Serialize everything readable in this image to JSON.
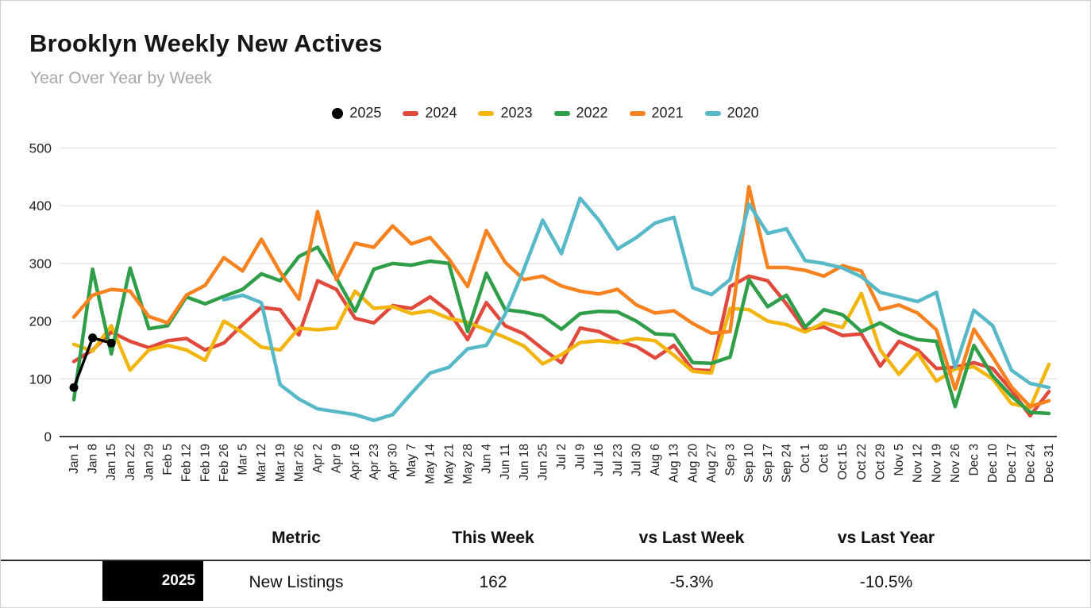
{
  "header": {
    "title": "Brooklyn Weekly New Actives",
    "subtitle": "Year Over Year by Week"
  },
  "legend": [
    {
      "label": "2025",
      "color": "#000000",
      "marker": "circle"
    },
    {
      "label": "2024",
      "color": "#e0493b",
      "marker": "bar"
    },
    {
      "label": "2023",
      "color": "#f2b50d",
      "marker": "bar"
    },
    {
      "label": "2022",
      "color": "#2f9e48",
      "marker": "bar"
    },
    {
      "label": "2021",
      "color": "#f8821f",
      "marker": "bar"
    },
    {
      "label": "2020",
      "color": "#57b9c8",
      "marker": "bar"
    }
  ],
  "chart_data": {
    "type": "line",
    "title": "Brooklyn Weekly New Actives",
    "subtitle": "Year Over Year by Week",
    "xlabel": "",
    "ylabel": "",
    "ylim": [
      0,
      550
    ],
    "yticks": [
      0,
      100,
      200,
      300,
      400,
      500
    ],
    "grid": true,
    "legend_position": "top",
    "categories": [
      "Jan 1",
      "Jan 8",
      "Jan 15",
      "Jan 22",
      "Jan 29",
      "Feb 5",
      "Feb 12",
      "Feb 19",
      "Feb 26",
      "Mar 5",
      "Mar 12",
      "Mar 19",
      "Mar 26",
      "Apr 2",
      "Apr 9",
      "Apr 16",
      "Apr 23",
      "Apr 30",
      "May 7",
      "May 14",
      "May 21",
      "May 28",
      "Jun 4",
      "Jun 11",
      "Jun 18",
      "Jun 25",
      "Jul 2",
      "Jul 9",
      "Jul 16",
      "Jul 23",
      "Jul 30",
      "Aug 6",
      "Aug 13",
      "Aug 20",
      "Aug 27",
      "Sep 3",
      "Sep 10",
      "Sep 17",
      "Sep 24",
      "Oct 1",
      "Oct 8",
      "Oct 15",
      "Oct 22",
      "Oct 29",
      "Nov 5",
      "Nov 12",
      "Nov 19",
      "Nov 26",
      "Dec 3",
      "Dec 10",
      "Dec 17",
      "Dec 24",
      "Dec 31"
    ],
    "series": [
      {
        "name": "2025",
        "color": "#000000",
        "style": "line-with-dots",
        "values": [
          85,
          171,
          162,
          null,
          null,
          null,
          null,
          null,
          null,
          null,
          null,
          null,
          null,
          null,
          null,
          null,
          null,
          null,
          null,
          null,
          null,
          null,
          null,
          null,
          null,
          null,
          null,
          null,
          null,
          null,
          null,
          null,
          null,
          null,
          null,
          null,
          null,
          null,
          null,
          null,
          null,
          null,
          null,
          null,
          null,
          null,
          null,
          null,
          null,
          null,
          null,
          null,
          null
        ]
      },
      {
        "name": "2024",
        "color": "#e0493b",
        "style": "line",
        "values": [
          130,
          150,
          181,
          165,
          154,
          166,
          170,
          150,
          162,
          194,
          224,
          220,
          176,
          270,
          255,
          205,
          197,
          227,
          222,
          242,
          217,
          168,
          232,
          192,
          178,
          152,
          128,
          188,
          182,
          166,
          156,
          136,
          158,
          116,
          114,
          260,
          278,
          270,
          230,
          185,
          190,
          175,
          178,
          122,
          165,
          150,
          118,
          120,
          128,
          118,
          80,
          36,
          78
        ]
      },
      {
        "name": "2023",
        "color": "#f2b50d",
        "style": "line",
        "values": [
          160,
          148,
          192,
          115,
          150,
          158,
          150,
          132,
          200,
          180,
          155,
          150,
          188,
          185,
          188,
          252,
          222,
          225,
          213,
          218,
          205,
          198,
          185,
          172,
          157,
          126,
          142,
          163,
          166,
          163,
          170,
          166,
          141,
          113,
          110,
          222,
          220,
          200,
          194,
          181,
          197,
          189,
          248,
          150,
          108,
          145,
          96,
          117,
          121,
          100,
          57,
          50,
          125
        ]
      },
      {
        "name": "2022",
        "color": "#2f9e48",
        "style": "line",
        "values": [
          64,
          290,
          143,
          292,
          187,
          192,
          242,
          230,
          243,
          255,
          282,
          270,
          312,
          328,
          275,
          217,
          290,
          300,
          297,
          304,
          300,
          182,
          283,
          220,
          216,
          209,
          186,
          213,
          217,
          216,
          200,
          178,
          176,
          128,
          127,
          138,
          272,
          225,
          245,
          190,
          220,
          211,
          182,
          197,
          179,
          168,
          165,
          52,
          158,
          105,
          70,
          42,
          40
        ]
      },
      {
        "name": "2021",
        "color": "#f8821f",
        "style": "line",
        "values": [
          207,
          245,
          255,
          252,
          208,
          197,
          245,
          262,
          310,
          287,
          342,
          285,
          238,
          390,
          272,
          335,
          328,
          365,
          334,
          345,
          308,
          260,
          357,
          302,
          272,
          278,
          261,
          252,
          247,
          255,
          228,
          214,
          218,
          196,
          179,
          182,
          433,
          293,
          293,
          288,
          278,
          296,
          287,
          220,
          228,
          214,
          185,
          82,
          186,
          138,
          86,
          52,
          62
        ]
      },
      {
        "name": "2020",
        "color": "#57b9c8",
        "style": "line",
        "values": [
          null,
          null,
          null,
          null,
          null,
          null,
          null,
          null,
          237,
          245,
          232,
          90,
          65,
          48,
          43,
          38,
          28,
          38,
          75,
          110,
          120,
          152,
          158,
          212,
          290,
          375,
          317,
          413,
          375,
          325,
          345,
          370,
          380,
          258,
          246,
          272,
          403,
          352,
          360,
          305,
          300,
          292,
          277,
          250,
          242,
          234,
          250,
          120,
          219,
          192,
          115,
          92,
          85
        ]
      }
    ]
  },
  "table": {
    "columns": [
      "Metric",
      "This Week",
      "vs Last Week",
      "vs Last Year"
    ],
    "rows": [
      {
        "label": "2025",
        "metric": "New Listings",
        "this_week": "162",
        "vs_last_week": "-5.3%",
        "vs_last_year": "-10.5%"
      }
    ]
  }
}
